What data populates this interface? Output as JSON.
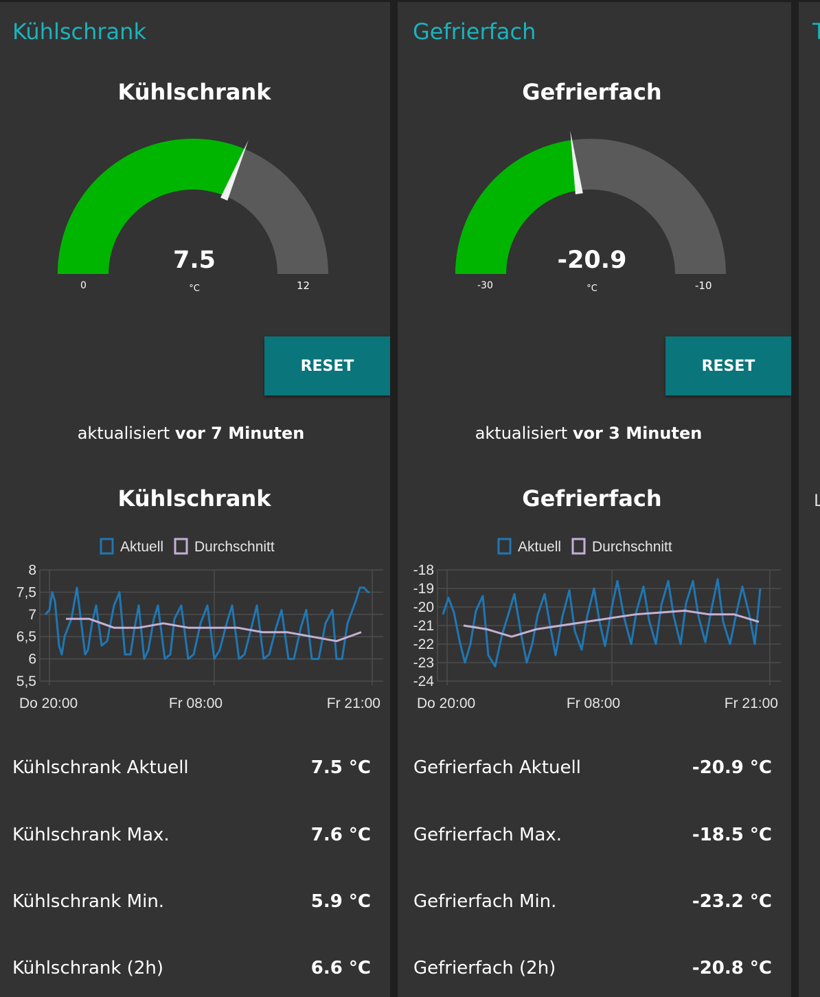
{
  "colors": {
    "accent": "#1bb3bd",
    "gauge_fill": "#00b500",
    "gauge_track": "#5a5a5a",
    "button": "#0a757a",
    "series_actual": "#1f77b4",
    "series_avg": "#c5b0d5"
  },
  "panels": [
    {
      "title": "Kühlschrank",
      "gauge": {
        "title": "Kühlschrank",
        "value": 7.5,
        "value_label": "7.5",
        "unit": "°C",
        "min": 0,
        "max": 12,
        "min_label": "0",
        "max_label": "12"
      },
      "reset_label": "RESET",
      "updated_prefix": "aktualisiert ",
      "updated_bold": "vor 7 Minuten",
      "chart_title": "Kühlschrank",
      "stats": [
        {
          "label": "Kühlschrank Aktuell",
          "value": "7.5 °C"
        },
        {
          "label": "Kühlschrank Max.",
          "value": "7.6 °C"
        },
        {
          "label": "Kühlschrank Min.",
          "value": "5.9 °C"
        },
        {
          "label": "Kühlschrank (2h)",
          "value": "6.6 °C"
        }
      ]
    },
    {
      "title": "Gefrierfach",
      "gauge": {
        "title": "Gefrierfach",
        "value": -20.9,
        "value_label": "-20.9",
        "unit": "°C",
        "min": -30,
        "max": -10,
        "min_label": "-30",
        "max_label": "-10"
      },
      "reset_label": "RESET",
      "updated_prefix": "aktualisiert ",
      "updated_bold": "vor 3 Minuten",
      "chart_title": "Gefrierfach",
      "stats": [
        {
          "label": "Gefrierfach Aktuell",
          "value": "-20.9 °C"
        },
        {
          "label": "Gefrierfach Max.",
          "value": "-18.5 °C"
        },
        {
          "label": "Gefrierfach Min.",
          "value": "-23.2 °C"
        },
        {
          "label": "Gefrierfach (2h)",
          "value": "-20.8 °C"
        }
      ]
    }
  ],
  "partial_panel": {
    "title_fragment": "T",
    "text_fragment": "L"
  },
  "chart_data": [
    {
      "type": "line",
      "title": "Kühlschrank",
      "legend": [
        "Aktuell",
        "Durchschnitt"
      ],
      "legend_placement": "top",
      "x_ticks": [
        "Do 20:00",
        "Fr 08:00",
        "Fr 21:00"
      ],
      "x_range": [
        0,
        25
      ],
      "ylim": [
        5.5,
        8
      ],
      "y_ticks": [
        "8",
        "7,5",
        "7",
        "6,5",
        "6",
        "5,5"
      ],
      "y_tick_values": [
        8,
        7.5,
        7,
        6.5,
        6,
        5.5
      ],
      "grid": true,
      "series": [
        {
          "name": "Aktuell",
          "x": [
            0.4,
            0.7,
            0.9,
            1.1,
            1.4,
            1.6,
            1.8,
            2.3,
            2.7,
            3.3,
            3.5,
            3.8,
            4.1,
            4.5,
            4.9,
            5.4,
            5.8,
            6.2,
            6.6,
            6.9,
            7.2,
            7.6,
            7.9,
            8.3,
            8.6,
            9.1,
            9.5,
            9.8,
            10.3,
            10.8,
            11.2,
            11.7,
            12.2,
            12.7,
            13.1,
            13.6,
            14.0,
            14.5,
            14.9,
            15.4,
            15.8,
            16.3,
            16.7,
            17.2,
            17.6,
            18.1,
            18.5,
            19.0,
            19.4,
            19.8,
            20.3,
            20.8,
            21.3,
            21.6,
            22.0,
            22.4,
            23.0,
            23.3,
            23.6,
            23.9,
            24.0
          ],
          "y": [
            7.0,
            7.1,
            7.5,
            7.3,
            6.3,
            6.1,
            6.5,
            6.9,
            7.6,
            6.1,
            6.2,
            6.8,
            7.2,
            6.3,
            6.4,
            7.2,
            7.5,
            6.1,
            6.1,
            6.7,
            7.2,
            6.0,
            6.2,
            6.9,
            7.2,
            6.0,
            6.1,
            6.9,
            7.2,
            6.0,
            6.1,
            6.8,
            7.2,
            6.0,
            6.2,
            6.8,
            7.2,
            6.0,
            6.1,
            6.7,
            7.2,
            6.0,
            6.1,
            6.7,
            7.1,
            6.0,
            6.0,
            6.7,
            7.1,
            6.0,
            6.0,
            6.8,
            7.1,
            6.0,
            6.0,
            6.8,
            7.3,
            7.6,
            7.6,
            7.5,
            7.5
          ]
        },
        {
          "name": "Durchschnitt",
          "x": [
            1.9,
            3.6,
            5.4,
            7.2,
            9.0,
            10.8,
            12.6,
            14.4,
            16.2,
            18.0,
            19.8,
            21.6,
            23.4
          ],
          "y": [
            6.9,
            6.9,
            6.7,
            6.7,
            6.8,
            6.7,
            6.7,
            6.7,
            6.6,
            6.6,
            6.5,
            6.4,
            6.6
          ]
        }
      ]
    },
    {
      "type": "line",
      "title": "Gefrierfach",
      "legend": [
        "Aktuell",
        "Durchschnitt"
      ],
      "legend_placement": "top",
      "x_ticks": [
        "Do 20:00",
        "Fr 08:00",
        "Fr 21:00"
      ],
      "x_range": [
        0,
        25
      ],
      "ylim": [
        -24,
        -18
      ],
      "y_ticks": [
        "-18",
        "-19",
        "-20",
        "-21",
        "-22",
        "-23",
        "-24"
      ],
      "y_tick_values": [
        -18,
        -19,
        -20,
        -21,
        -22,
        -23,
        -24
      ],
      "grid": true,
      "series": [
        {
          "name": "Aktuell",
          "x": [
            0.4,
            0.8,
            1.2,
            1.6,
            2.0,
            2.4,
            2.8,
            3.3,
            3.7,
            4.2,
            4.7,
            5.2,
            5.6,
            6.1,
            6.5,
            6.9,
            7.3,
            7.8,
            8.2,
            8.6,
            9.1,
            9.6,
            10.0,
            10.5,
            10.9,
            11.4,
            11.8,
            12.2,
            12.7,
            13.1,
            13.6,
            14.1,
            14.5,
            15.0,
            15.4,
            15.9,
            16.3,
            16.8,
            17.2,
            17.7,
            18.1,
            18.6,
            19.0,
            19.5,
            19.9,
            20.4,
            20.8,
            21.3,
            21.8,
            22.2,
            22.7,
            23.1,
            23.5
          ],
          "y": [
            -20.4,
            -19.5,
            -20.3,
            -21.8,
            -23.0,
            -22.0,
            -20.2,
            -19.4,
            -22.6,
            -23.2,
            -21.5,
            -20.3,
            -19.3,
            -21.5,
            -23.0,
            -22.0,
            -20.4,
            -19.3,
            -21.0,
            -22.6,
            -20.5,
            -19.1,
            -21.3,
            -22.3,
            -20.5,
            -19.0,
            -20.8,
            -22.1,
            -20.0,
            -18.6,
            -20.6,
            -22.0,
            -20.2,
            -18.9,
            -20.7,
            -22.0,
            -19.9,
            -18.6,
            -20.5,
            -22.0,
            -19.8,
            -18.6,
            -20.5,
            -21.9,
            -20.3,
            -18.5,
            -20.8,
            -22.0,
            -20.2,
            -18.9,
            -20.4,
            -22.0,
            -19.0
          ]
        },
        {
          "name": "Durchschnitt",
          "x": [
            1.9,
            3.6,
            5.4,
            7.2,
            9.0,
            10.8,
            12.6,
            14.4,
            16.2,
            18.0,
            19.8,
            21.6,
            23.4
          ],
          "y": [
            -21.0,
            -21.2,
            -21.6,
            -21.2,
            -21.0,
            -20.8,
            -20.6,
            -20.4,
            -20.3,
            -20.2,
            -20.4,
            -20.4,
            -20.8
          ]
        }
      ]
    }
  ]
}
